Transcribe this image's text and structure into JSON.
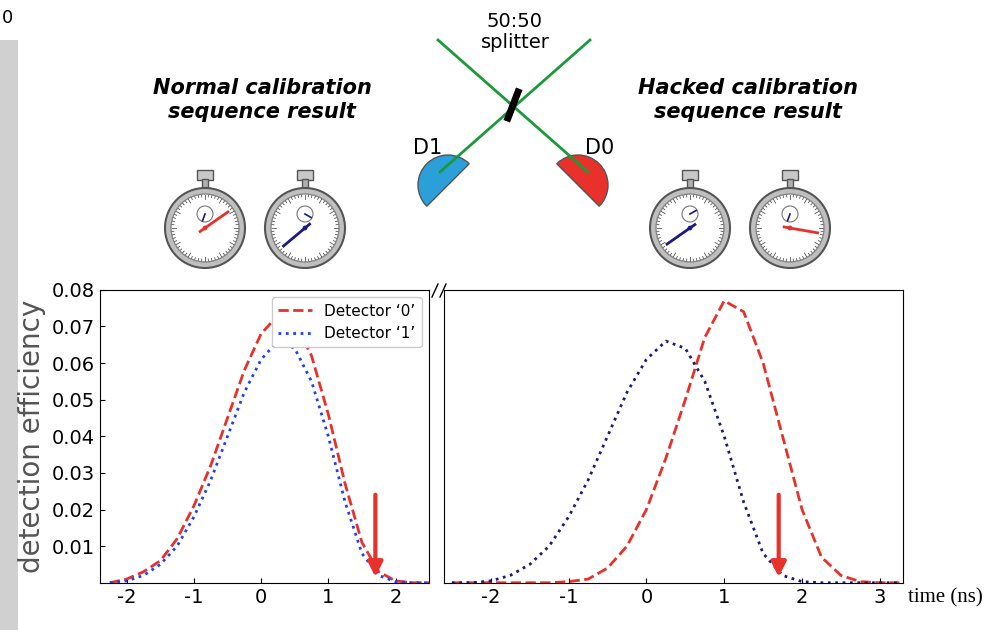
{
  "chart_data": [
    {
      "type": "line",
      "xlim": [
        -2.4,
        2.5
      ],
      "xticks": [
        -2,
        -1,
        0,
        1,
        2
      ],
      "ylim": [
        0,
        0.08
      ],
      "yticks": [
        0.01,
        0.02,
        0.03,
        0.04,
        0.05,
        0.06,
        0.07,
        0.08
      ],
      "y_label": "detection efficiency",
      "legend": "upper right",
      "arrow_x": 1.7,
      "x": [
        -2.25,
        -2,
        -1.75,
        -1.5,
        -1.25,
        -1,
        -0.75,
        -0.5,
        -0.25,
        0,
        0.25,
        0.5,
        0.75,
        1,
        1.25,
        1.5,
        1.75,
        2,
        2.25,
        2.5
      ],
      "series": [
        {
          "name": "Detector ‘0’",
          "color": "#e8312a",
          "line_style": "dashed",
          "values": [
            0,
            0.001,
            0.003,
            0.006,
            0.012,
            0.021,
            0.032,
            0.045,
            0.058,
            0.068,
            0.073,
            0.071,
            0.062,
            0.046,
            0.027,
            0.011,
            0.003,
            0.0005,
            0,
            0
          ]
        },
        {
          "name": "Detector ‘1’",
          "color": "#1f3fff",
          "line_style": "dotted",
          "values": [
            0,
            0.0005,
            0.002,
            0.005,
            0.01,
            0.018,
            0.028,
            0.04,
            0.052,
            0.061,
            0.066,
            0.064,
            0.055,
            0.04,
            0.022,
            0.008,
            0.002,
            0.0003,
            0,
            0
          ]
        }
      ]
    },
    {
      "type": "line",
      "xlim": [
        -2.6,
        3.3
      ],
      "xticks": [
        -2,
        -1,
        0,
        1,
        2,
        3
      ],
      "ylim": [
        0,
        0.08
      ],
      "tick_labels": "x",
      "x_label": "time (ns)",
      "arrow_x": 1.7,
      "x": [
        -2.5,
        -2.25,
        -2,
        -1.75,
        -1.5,
        -1.25,
        -1,
        -0.75,
        -0.5,
        -0.25,
        0,
        0.25,
        0.5,
        0.75,
        1,
        1.25,
        1.5,
        1.75,
        2,
        2.25,
        2.5,
        2.75,
        3,
        3.25
      ],
      "series": [
        {
          "color": "#e8312a",
          "line_style": "dashed",
          "values": [
            0,
            0,
            0,
            0,
            0,
            0,
            0.0003,
            0.001,
            0.004,
            0.01,
            0.02,
            0.034,
            0.05,
            0.067,
            0.077,
            0.074,
            0.06,
            0.04,
            0.02,
            0.007,
            0.002,
            0.0003,
            0,
            0
          ]
        },
        {
          "color": "#1a1a80",
          "line_style": "dotted",
          "values": [
            0,
            0,
            0.0005,
            0.002,
            0.005,
            0.01,
            0.018,
            0.028,
            0.04,
            0.052,
            0.061,
            0.066,
            0.064,
            0.055,
            0.04,
            0.022,
            0.008,
            0.002,
            0.0003,
            0,
            0,
            0,
            0,
            0
          ]
        }
      ]
    }
  ],
  "diagram": {
    "corner_text": "0",
    "splitter_label": "50:50\nsplitter",
    "detectors": [
      "D1",
      "D0"
    ],
    "normal_label": "Normal calibration\nsequence result",
    "hacked_label": "Hacked calibration\nsequence result"
  }
}
